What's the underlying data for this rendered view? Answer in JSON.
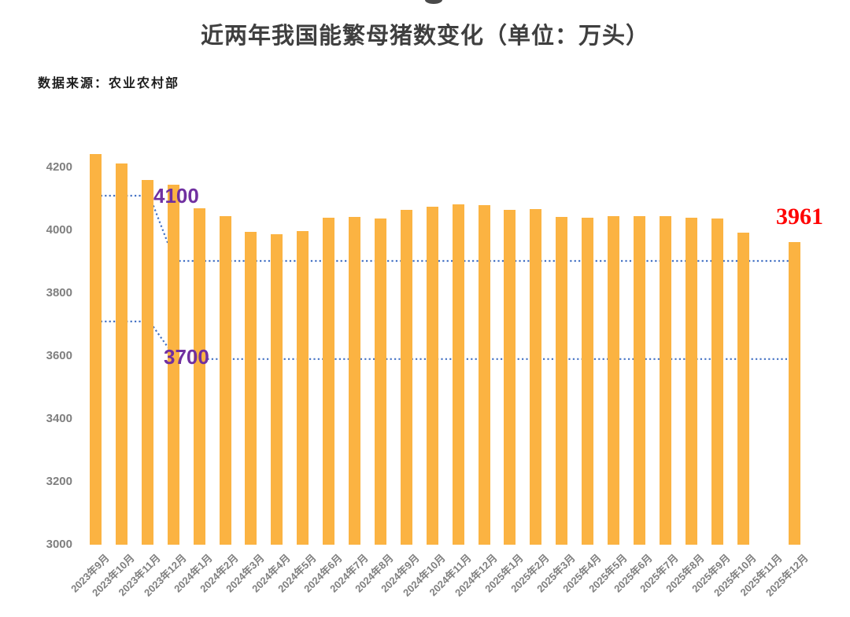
{
  "page": {
    "source": "数据来源：农业农村部"
  },
  "chart_data": {
    "type": "bar",
    "title": "近两年我国能繁母猪数变化（单位：万头）",
    "categories": [
      "2023年9月",
      "2023年10月",
      "2023年11月",
      "2023年12月",
      "2024年1月",
      "2024年2月",
      "2024年3月",
      "2024年4月",
      "2024年5月",
      "2024年6月",
      "2024年7月",
      "2024年8月",
      "2024年9月",
      "2024年10月",
      "2024年11月",
      "2024年12月",
      "2025年1月",
      "2025年2月",
      "2025年3月",
      "2025年4月",
      "2025年5月",
      "2025年6月",
      "2025年7月",
      "2025年8月",
      "2025年9月",
      "2025年10月",
      "2025年11月",
      "2025年12月"
    ],
    "values": [
      4240,
      4210,
      4158,
      4142,
      4067,
      4042,
      3992,
      3986,
      3996,
      4038,
      4041,
      4036,
      4062,
      4073,
      4080,
      4078,
      4062,
      4066,
      4039,
      4038,
      4042,
      4043,
      4042,
      4038,
      4035,
      3990,
      null,
      3961
    ],
    "ylim": [
      3000,
      4200
    ],
    "yticks": [
      4200,
      4000,
      3800,
      3600,
      3400,
      3200,
      3000
    ],
    "grid": false,
    "legend": false,
    "bar_color": "#FBB342",
    "axis_label_color": "#7f7f7f",
    "reference_lines": [
      {
        "name": "upper-target-line",
        "from_value": 4100,
        "to_value": 3900,
        "color": "#4472C4",
        "style": "dotted"
      },
      {
        "name": "lower-target-line",
        "from_value": 3700,
        "to_value": 3588,
        "color": "#4472C4",
        "style": "dotted"
      }
    ],
    "annotations": [
      {
        "text": "4100",
        "color": "#7030A0"
      },
      {
        "text": "3700",
        "color": "#7030A0"
      },
      {
        "text": "3961",
        "color": "#FF0000"
      }
    ]
  }
}
